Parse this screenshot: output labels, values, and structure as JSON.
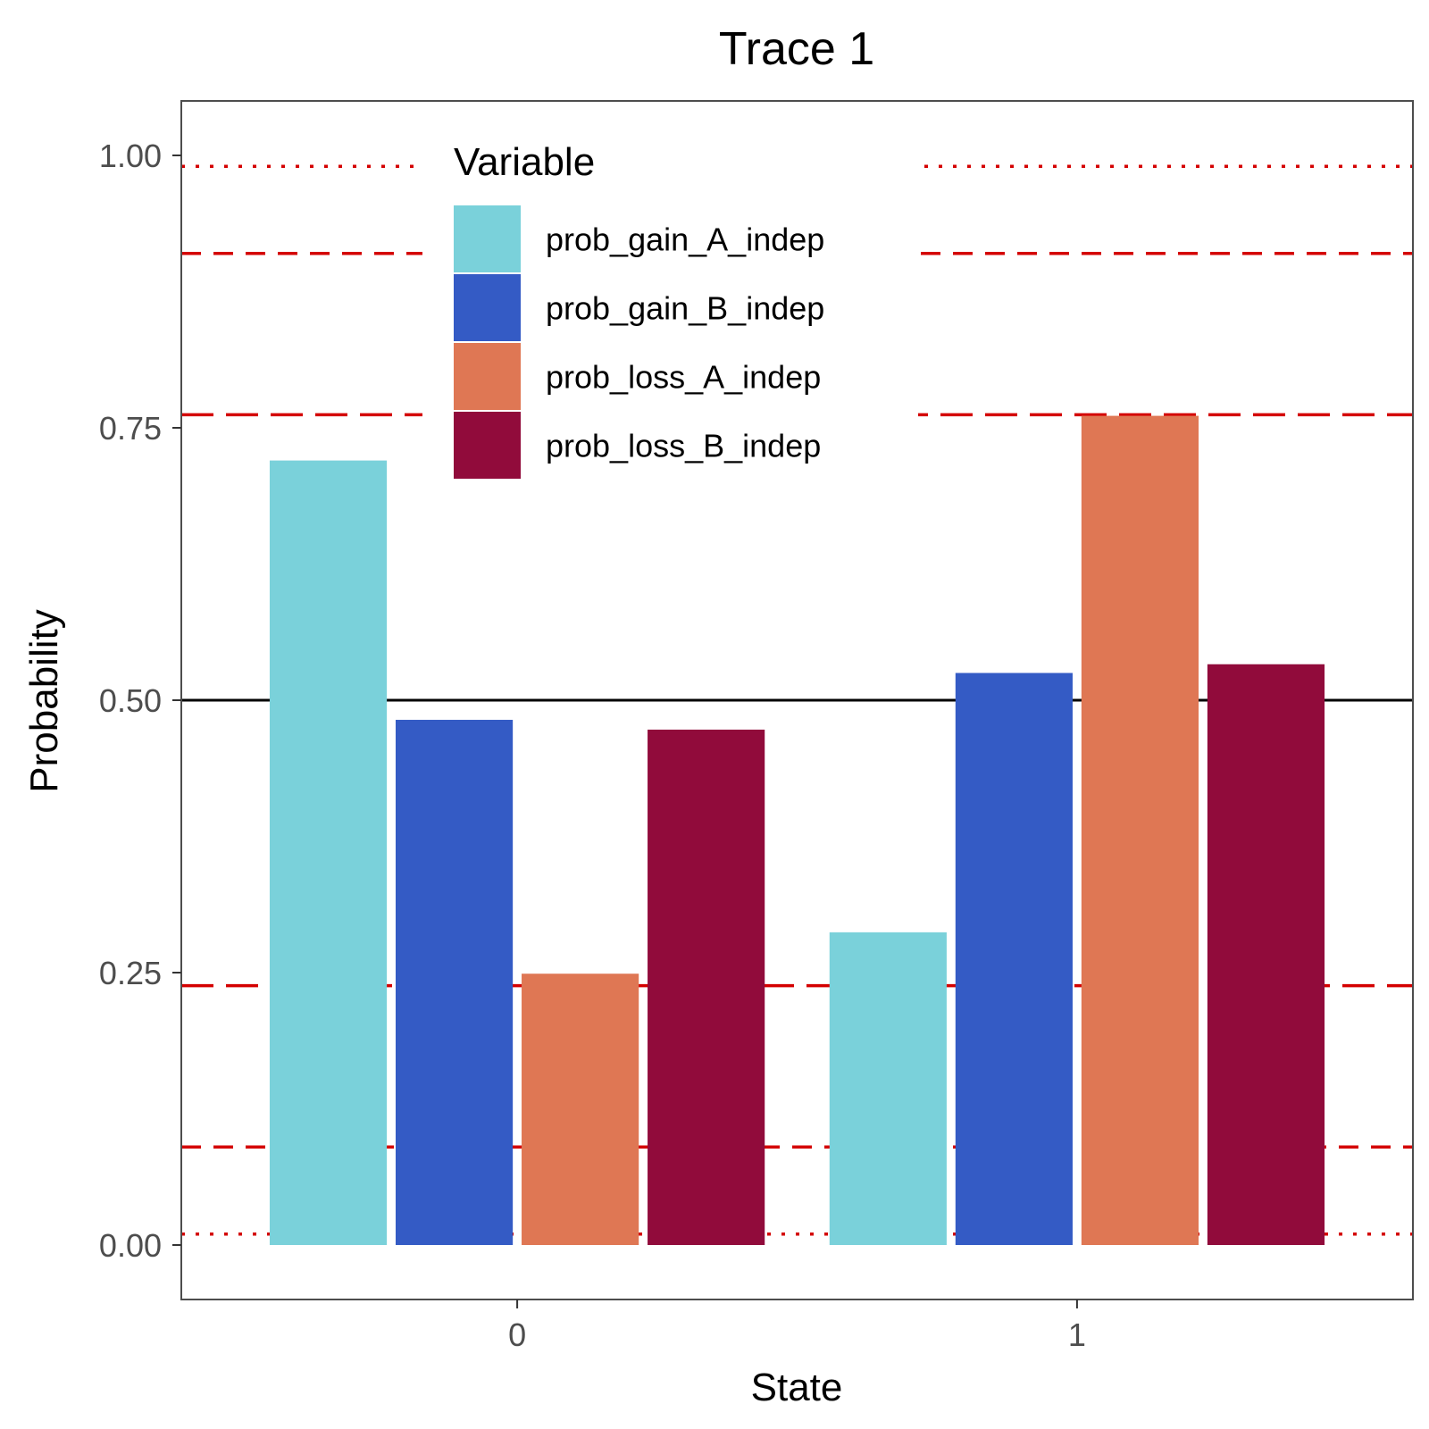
{
  "chart_data": {
    "type": "bar",
    "title": "Trace 1",
    "xlabel": "State",
    "ylabel": "Probability",
    "categories": [
      "0",
      "1"
    ],
    "ylim": [
      -0.05,
      1.05
    ],
    "yticks": [
      "0.00",
      "0.25",
      "0.50",
      "0.75",
      "1.00"
    ],
    "grid": false,
    "series": [
      {
        "name": "prob_gain_A_indep",
        "color": "#7ad1da",
        "values": [
          0.72,
          0.287
        ]
      },
      {
        "name": "prob_gain_B_indep",
        "color": "#345bc5",
        "values": [
          0.482,
          0.525
        ]
      },
      {
        "name": "prob_loss_A_indep",
        "color": "#df7754",
        "values": [
          0.249,
          0.761
        ]
      },
      {
        "name": "prob_loss_B_indep",
        "color": "#910b3b",
        "values": [
          0.473,
          0.533
        ]
      }
    ],
    "legend": {
      "title": "Variable",
      "position": "top-center-inside"
    },
    "reference_lines": [
      {
        "y": 0.5,
        "style": "solid",
        "color": "#000000"
      },
      {
        "y": 0.762,
        "style": "long-dash",
        "color": "#d40000"
      },
      {
        "y": 0.238,
        "style": "long-dash",
        "color": "#d40000"
      },
      {
        "y": 0.91,
        "style": "dash",
        "color": "#d40000"
      },
      {
        "y": 0.09,
        "style": "dash",
        "color": "#d40000"
      },
      {
        "y": 0.99,
        "style": "dotted",
        "color": "#d40000"
      },
      {
        "y": 0.01,
        "style": "dotted",
        "color": "#d40000"
      }
    ]
  }
}
